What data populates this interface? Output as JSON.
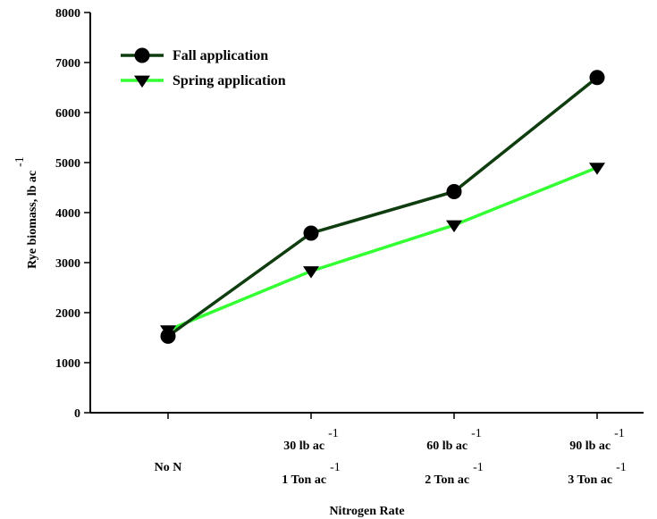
{
  "chart_data": {
    "type": "line",
    "title": "",
    "xlabel": "Nitrogen Rate",
    "ylabel": "Rye biomass, lb ac",
    "ylabel_superscript": "-1",
    "ylim": [
      0,
      8000
    ],
    "yticks": [
      0,
      1000,
      2000,
      3000,
      4000,
      5000,
      6000,
      7000,
      8000
    ],
    "grid": false,
    "legend_position": "top-left",
    "categories": [
      {
        "lines": [
          {
            "text": "No N",
            "sup": ""
          }
        ]
      },
      {
        "lines": [
          {
            "text": "30 lb ac",
            "sup": "-1"
          },
          {
            "text": "1 Ton ac",
            "sup": "-1"
          }
        ]
      },
      {
        "lines": [
          {
            "text": "60 lb ac",
            "sup": "-1"
          },
          {
            "text": "2 Ton ac",
            "sup": "-1"
          }
        ]
      },
      {
        "lines": [
          {
            "text": "90 lb ac",
            "sup": "-1"
          },
          {
            "text": "3 Ton ac",
            "sup": "-1"
          }
        ]
      }
    ],
    "series": [
      {
        "name": "Fall application",
        "color": "#0f3d0f",
        "marker": "circle",
        "values": [
          1530,
          3590,
          4420,
          6700
        ]
      },
      {
        "name": "Spring application",
        "color": "#33ff33",
        "marker": "triangle-down",
        "values": [
          1650,
          2830,
          3750,
          4900
        ]
      }
    ]
  }
}
